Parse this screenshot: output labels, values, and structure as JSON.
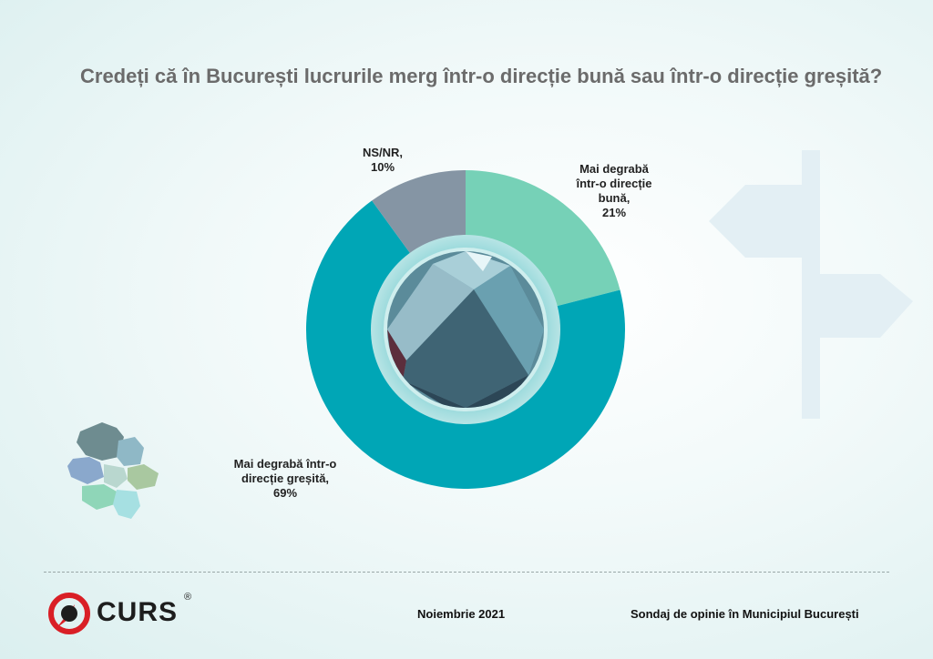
{
  "title": "Credeți că în București lucrurile merg într-o direcție bună sau într-o direcție greșită?",
  "chart_data": {
    "type": "pie",
    "title": "Credeți că în București lucrurile merg într-o direcție bună sau într-o direcție greșită?",
    "slices": [
      {
        "label_lines": [
          "Mai degrabă",
          "într-o direcție",
          "bună,"
        ],
        "value": 21,
        "value_label": "21%",
        "color": "#76d1b7"
      },
      {
        "label_lines": [
          "Mai degrabă într-o",
          "direcție greșită,"
        ],
        "value": 69,
        "value_label": "69%",
        "color": "#00a6b6"
      },
      {
        "label_lines": [
          "NS/NR,"
        ],
        "value": 10,
        "value_label": "10%",
        "color": "#8595a4"
      }
    ],
    "start_angle_deg": 0,
    "direction": "clockwise"
  },
  "footer": {
    "brand": "CURS",
    "registered": "®",
    "date": "Noiembrie 2021",
    "survey": "Sondaj de opinie în Municipiul București"
  },
  "colors": {
    "accent_teal": "#00a6b6",
    "accent_mint": "#76d1b7",
    "neutral_grey": "#8595a4",
    "logo_red": "#d91f26"
  }
}
